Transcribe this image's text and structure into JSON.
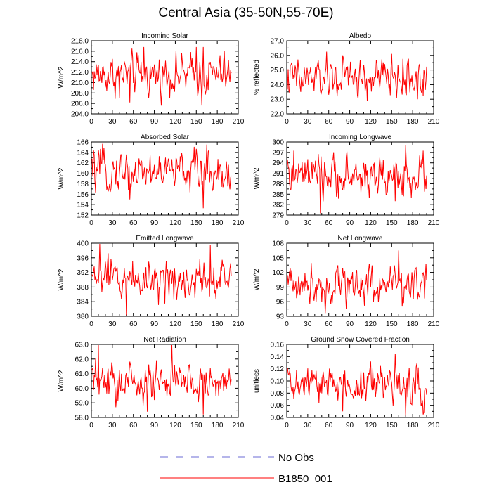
{
  "figure": {
    "title": "Central Asia (35-50N,55-70E)"
  },
  "legend": {
    "entries": [
      {
        "label": "No Obs",
        "color": "#6b6bd6",
        "style": "dashed"
      },
      {
        "label": "B1850_001",
        "color": "#ff0000",
        "style": "solid"
      }
    ]
  },
  "colors": {
    "series": "#ff0000",
    "axis": "#000000"
  },
  "chart_data": [
    {
      "type": "line",
      "title": "Incoming Solar",
      "ylabel": "W/m^2",
      "xlabel": "",
      "xlim": [
        0,
        210
      ],
      "ylim": [
        204,
        218
      ],
      "xticks": [
        0,
        30,
        60,
        90,
        120,
        150,
        180,
        210
      ],
      "xtick_labels": [
        "0",
        "30",
        "60",
        "90",
        "120",
        "150",
        "180",
        "210"
      ],
      "yticks": [
        204,
        206,
        208,
        210,
        212,
        214,
        216,
        218
      ],
      "ytick_labels": [
        "204.0",
        "206.0",
        "208.0",
        "210.0",
        "212.0",
        "214.0",
        "216.0",
        "218.0"
      ],
      "series": [
        {
          "name": "B1850_001",
          "x_start": 1,
          "x_end": 200,
          "mean": 211.5,
          "key_points": [
            {
              "x": 55,
              "y": 206.2
            },
            {
              "x": 75,
              "y": 216.8
            },
            {
              "x": 150,
              "y": 216.8
            },
            {
              "x": 158,
              "y": 205.6
            },
            {
              "x": 160,
              "y": 216.8
            },
            {
              "x": 40,
              "y": 207.0
            }
          ]
        }
      ]
    },
    {
      "type": "line",
      "title": "Albedo",
      "ylabel": "% reflected",
      "xlabel": "",
      "xlim": [
        0,
        210
      ],
      "ylim": [
        22,
        27
      ],
      "xticks": [
        0,
        30,
        60,
        90,
        120,
        150,
        180,
        210
      ],
      "xtick_labels": [
        "0",
        "30",
        "60",
        "90",
        "120",
        "150",
        "180",
        "210"
      ],
      "yticks": [
        22,
        23,
        24,
        25,
        26,
        27
      ],
      "ytick_labels": [
        "22.0",
        "23.0",
        "24.0",
        "25.0",
        "26.0",
        "27.0"
      ],
      "series": [
        {
          "name": "B1850_001",
          "x_start": 1,
          "x_end": 200,
          "mean": 24.4,
          "key_points": [
            {
              "x": 80,
              "y": 26.0
            },
            {
              "x": 150,
              "y": 26.1
            },
            {
              "x": 195,
              "y": 23.2
            },
            {
              "x": 115,
              "y": 22.9
            },
            {
              "x": 20,
              "y": 23.5
            }
          ]
        }
      ]
    },
    {
      "type": "line",
      "title": "Absorbed Solar",
      "ylabel": "W/m^2",
      "xlabel": "",
      "xlim": [
        0,
        210
      ],
      "ylim": [
        152,
        166
      ],
      "xticks": [
        0,
        30,
        60,
        90,
        120,
        150,
        180,
        210
      ],
      "xtick_labels": [
        "0",
        "30",
        "60",
        "90",
        "120",
        "150",
        "180",
        "210"
      ],
      "yticks": [
        152,
        154,
        156,
        158,
        160,
        162,
        164,
        166
      ],
      "ytick_labels": [
        "152",
        "154",
        "156",
        "158",
        "160",
        "162",
        "164",
        "166"
      ],
      "series": [
        {
          "name": "B1850_001",
          "x_start": 1,
          "x_end": 200,
          "mean": 160.4,
          "key_points": [
            {
              "x": 165,
              "y": 165.5
            },
            {
              "x": 160,
              "y": 153.3
            },
            {
              "x": 55,
              "y": 155.0
            },
            {
              "x": 130,
              "y": 163.0
            }
          ]
        }
      ]
    },
    {
      "type": "line",
      "title": "Incoming Longwave",
      "ylabel": "W/m^2",
      "xlabel": "",
      "xlim": [
        0,
        210
      ],
      "ylim": [
        279,
        300
      ],
      "xticks": [
        0,
        30,
        60,
        90,
        120,
        150,
        180,
        210
      ],
      "xtick_labels": [
        "0",
        "30",
        "60",
        "90",
        "120",
        "150",
        "180",
        "210"
      ],
      "yticks": [
        279,
        282,
        285,
        288,
        291,
        294,
        297,
        300
      ],
      "ytick_labels": [
        "279",
        "282",
        "285",
        "288",
        "291",
        "294",
        "297",
        "300"
      ],
      "series": [
        {
          "name": "B1850_001",
          "x_start": 1,
          "x_end": 200,
          "mean": 290.0,
          "key_points": [
            {
              "x": 48,
              "y": 279.5
            },
            {
              "x": 10,
              "y": 297.5
            },
            {
              "x": 170,
              "y": 299.0
            },
            {
              "x": 155,
              "y": 283.0
            },
            {
              "x": 195,
              "y": 297.5
            }
          ]
        }
      ]
    },
    {
      "type": "line",
      "title": "Emitted Longwave",
      "ylabel": "W/m^2",
      "xlabel": "",
      "xlim": [
        0,
        210
      ],
      "ylim": [
        380,
        400
      ],
      "xticks": [
        0,
        30,
        60,
        90,
        120,
        150,
        180,
        210
      ],
      "xtick_labels": [
        "0",
        "30",
        "60",
        "90",
        "120",
        "150",
        "180",
        "210"
      ],
      "yticks": [
        380,
        384,
        388,
        392,
        396,
        400
      ],
      "ytick_labels": [
        "380",
        "384",
        "388",
        "392",
        "396",
        "400"
      ],
      "series": [
        {
          "name": "B1850_001",
          "x_start": 1,
          "x_end": 200,
          "mean": 390.5,
          "key_points": [
            {
              "x": 12,
              "y": 399.8
            },
            {
              "x": 50,
              "y": 380.3
            },
            {
              "x": 170,
              "y": 399.5
            },
            {
              "x": 105,
              "y": 383.5
            }
          ]
        }
      ]
    },
    {
      "type": "line",
      "title": "Net Longwave",
      "ylabel": "W/m^2",
      "xlabel": "",
      "xlim": [
        0,
        210
      ],
      "ylim": [
        93,
        108
      ],
      "xticks": [
        0,
        30,
        60,
        90,
        120,
        150,
        180,
        210
      ],
      "xtick_labels": [
        "0",
        "30",
        "60",
        "90",
        "120",
        "150",
        "180",
        "210"
      ],
      "yticks": [
        93,
        96,
        99,
        102,
        105,
        108
      ],
      "ytick_labels": [
        "93",
        "96",
        "99",
        "102",
        "105",
        "108"
      ],
      "series": [
        {
          "name": "B1850_001",
          "x_start": 1,
          "x_end": 200,
          "mean": 99.8,
          "key_points": [
            {
              "x": 160,
              "y": 106.5
            },
            {
              "x": 55,
              "y": 93.5
            },
            {
              "x": 5,
              "y": 102.8
            },
            {
              "x": 165,
              "y": 95.0
            }
          ]
        }
      ]
    },
    {
      "type": "line",
      "title": "Net Radiation",
      "ylabel": "W/m^2",
      "xlabel": "",
      "xlim": [
        0,
        210
      ],
      "ylim": [
        58,
        63
      ],
      "xticks": [
        0,
        30,
        60,
        90,
        120,
        150,
        180,
        210
      ],
      "xtick_labels": [
        "0",
        "30",
        "60",
        "90",
        "120",
        "150",
        "180",
        "210"
      ],
      "yticks": [
        58,
        59,
        60,
        61,
        62,
        63
      ],
      "ytick_labels": [
        "58.0",
        "59.0",
        "60.0",
        "61.0",
        "62.0",
        "63.0"
      ],
      "series": [
        {
          "name": "B1850_001",
          "x_start": 1,
          "x_end": 200,
          "mean": 60.4,
          "key_points": [
            {
              "x": 10,
              "y": 63.0
            },
            {
              "x": 115,
              "y": 63.0
            },
            {
              "x": 160,
              "y": 58.2
            },
            {
              "x": 35,
              "y": 58.7
            },
            {
              "x": 80,
              "y": 58.4
            }
          ]
        }
      ]
    },
    {
      "type": "line",
      "title": "Ground Snow Covered Fraction",
      "ylabel": "unitless",
      "xlabel": "",
      "xlim": [
        0,
        210
      ],
      "ylim": [
        0.04,
        0.16
      ],
      "xticks": [
        0,
        30,
        60,
        90,
        120,
        150,
        180,
        210
      ],
      "xtick_labels": [
        "0",
        "30",
        "60",
        "90",
        "120",
        "150",
        "180",
        "210"
      ],
      "yticks": [
        0.04,
        0.06,
        0.08,
        0.1,
        0.12,
        0.14,
        0.16
      ],
      "ytick_labels": [
        "0.04",
        "0.06",
        "0.08",
        "0.10",
        "0.12",
        "0.14",
        "0.16"
      ],
      "series": [
        {
          "name": "B1850_001",
          "x_start": 1,
          "x_end": 200,
          "mean": 0.093,
          "key_points": [
            {
              "x": 155,
              "y": 0.145
            },
            {
              "x": 170,
              "y": 0.043
            },
            {
              "x": 195,
              "y": 0.045
            },
            {
              "x": 120,
              "y": 0.132
            },
            {
              "x": 80,
              "y": 0.05
            }
          ]
        }
      ]
    }
  ]
}
